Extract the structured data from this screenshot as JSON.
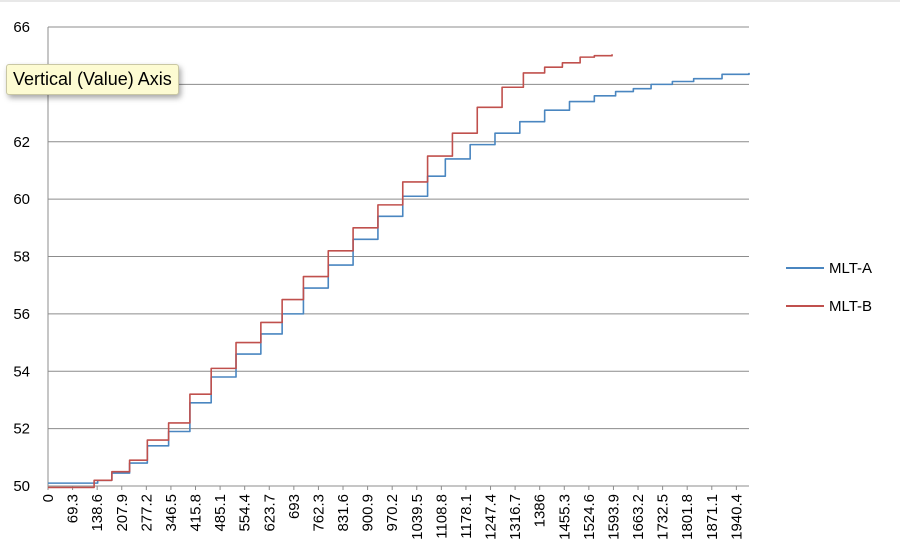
{
  "chart_data": {
    "type": "line",
    "title": "",
    "xlabel": "",
    "ylabel": "",
    "tooltip": "Vertical (Value) Axis",
    "ylim": [
      50,
      66
    ],
    "yticks": [
      "50",
      "52",
      "54",
      "56",
      "58",
      "60",
      "62",
      "64",
      "66"
    ],
    "x_categories": [
      "0",
      "69.3",
      "138.6",
      "207.9",
      "277.2",
      "346.5",
      "415.8",
      "485.1",
      "554.4",
      "623.7",
      "693",
      "762.3",
      "831.6",
      "900.9",
      "970.2",
      "1039.5",
      "1108.8",
      "1178.1",
      "1247.4",
      "1316.7",
      "1386",
      "1455.3",
      "1524.6",
      "1593.9",
      "1663.2",
      "1732.5",
      "1801.8",
      "1871.1",
      "1940.4"
    ],
    "x_step": 69.3,
    "xlim": [
      0,
      1976
    ],
    "grid": true,
    "legend_position": "right",
    "series": [
      {
        "name": "MLT-A",
        "color": "#4a86c0",
        "points": [
          [
            0,
            50.1
          ],
          [
            100,
            50.1
          ],
          [
            140,
            50.2
          ],
          [
            180,
            50.45
          ],
          [
            230,
            50.8
          ],
          [
            280,
            51.4
          ],
          [
            340,
            51.9
          ],
          [
            400,
            52.9
          ],
          [
            460,
            53.8
          ],
          [
            530,
            54.6
          ],
          [
            600,
            55.3
          ],
          [
            660,
            56.0
          ],
          [
            720,
            56.9
          ],
          [
            790,
            57.7
          ],
          [
            860,
            58.6
          ],
          [
            930,
            59.4
          ],
          [
            1000,
            60.1
          ],
          [
            1070,
            60.8
          ],
          [
            1120,
            61.4
          ],
          [
            1190,
            61.9
          ],
          [
            1260,
            62.3
          ],
          [
            1330,
            62.7
          ],
          [
            1400,
            63.1
          ],
          [
            1470,
            63.4
          ],
          [
            1540,
            63.6
          ],
          [
            1600,
            63.75
          ],
          [
            1650,
            63.85
          ],
          [
            1700,
            64.0
          ],
          [
            1760,
            64.1
          ],
          [
            1820,
            64.2
          ],
          [
            1900,
            64.35
          ],
          [
            1976,
            64.4
          ]
        ]
      },
      {
        "name": "MLT-B",
        "color": "#c0504d",
        "points": [
          [
            0,
            49.95
          ],
          [
            90,
            49.95
          ],
          [
            130,
            50.2
          ],
          [
            180,
            50.5
          ],
          [
            230,
            50.9
          ],
          [
            280,
            51.6
          ],
          [
            340,
            52.2
          ],
          [
            400,
            53.2
          ],
          [
            460,
            54.1
          ],
          [
            530,
            55.0
          ],
          [
            600,
            55.7
          ],
          [
            660,
            56.5
          ],
          [
            720,
            57.3
          ],
          [
            790,
            58.2
          ],
          [
            860,
            59.0
          ],
          [
            930,
            59.8
          ],
          [
            1000,
            60.6
          ],
          [
            1070,
            61.5
          ],
          [
            1140,
            62.3
          ],
          [
            1210,
            63.2
          ],
          [
            1280,
            63.9
          ],
          [
            1340,
            64.4
          ],
          [
            1400,
            64.6
          ],
          [
            1450,
            64.75
          ],
          [
            1500,
            64.95
          ],
          [
            1540,
            65.0
          ],
          [
            1590,
            65.05
          ]
        ]
      }
    ]
  }
}
